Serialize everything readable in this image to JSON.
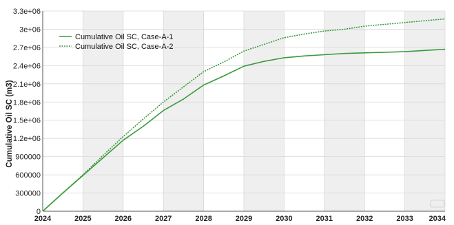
{
  "chart_data": {
    "type": "line",
    "ylabel": "Cumulative Oil SC (m3)",
    "xlabel": "",
    "xlim": [
      2024,
      2034
    ],
    "ylim": [
      0,
      3300000
    ],
    "x_ticks": [
      "2024",
      "2025",
      "2026",
      "2027",
      "2028",
      "2029",
      "2030",
      "2031",
      "2032",
      "2033",
      "2034"
    ],
    "y_ticks": [
      "0",
      "300000",
      "600000",
      "900000",
      "1.2e+06",
      "1.5e+06",
      "1.8e+06",
      "2.1e+06",
      "2.4e+06",
      "2.7e+06",
      "3e+06",
      "3.3e+06"
    ],
    "grid": true,
    "alternating_year_bands": true,
    "legend_position": "top-left",
    "series": [
      {
        "name": "Cumulative Oil SC, Case-A-1",
        "style": "solid",
        "color": "#3a9a3a",
        "x": [
          2024,
          2024.5,
          2025,
          2025.5,
          2026,
          2026.5,
          2027,
          2027.5,
          2028,
          2028.5,
          2029,
          2029.5,
          2030,
          2030.5,
          2031,
          2031.5,
          2032,
          2032.5,
          2033,
          2033.5,
          2034
        ],
        "y": [
          0,
          300000,
          590000,
          880000,
          1170000,
          1400000,
          1660000,
          1850000,
          2080000,
          2230000,
          2390000,
          2470000,
          2530000,
          2560000,
          2580000,
          2600000,
          2610000,
          2620000,
          2630000,
          2650000,
          2670000
        ]
      },
      {
        "name": "Cumulative Oil SC, Case-A-2",
        "style": "dotted",
        "color": "#3a9a3a",
        "x": [
          2024,
          2024.5,
          2025,
          2025.5,
          2026,
          2026.5,
          2027,
          2027.5,
          2028,
          2028.5,
          2029,
          2029.5,
          2030,
          2030.5,
          2031,
          2031.5,
          2032,
          2032.5,
          2033,
          2033.5,
          2034
        ],
        "y": [
          0,
          300000,
          600000,
          920000,
          1230000,
          1520000,
          1800000,
          2050000,
          2300000,
          2460000,
          2640000,
          2750000,
          2860000,
          2920000,
          2970000,
          3000000,
          3050000,
          3080000,
          3110000,
          3140000,
          3170000
        ]
      }
    ]
  }
}
